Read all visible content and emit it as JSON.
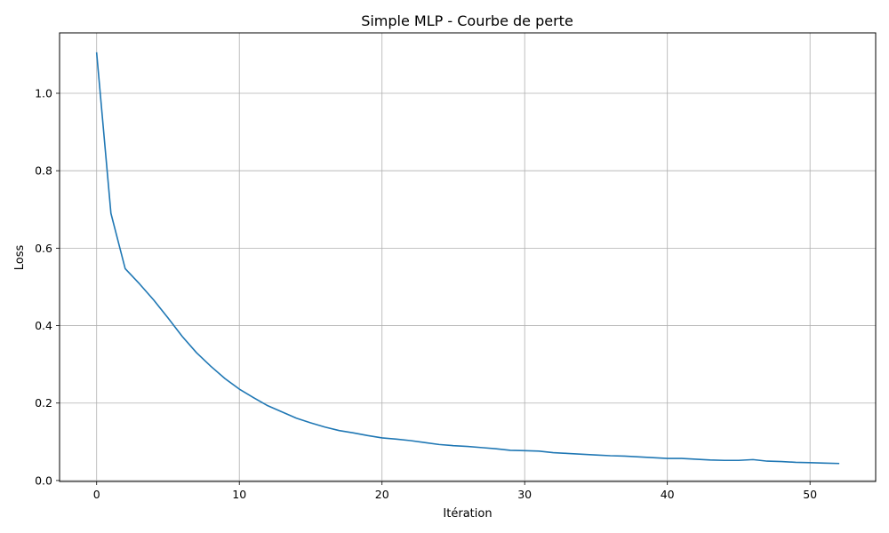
{
  "chart_data": {
    "type": "line",
    "title": "Simple MLP - Courbe de perte",
    "xlabel": "Itération",
    "ylabel": "Loss",
    "xlim": [
      -2.6,
      54.6
    ],
    "ylim": [
      -0.0025,
      1.156
    ],
    "xticks": [
      0,
      10,
      20,
      30,
      40,
      50
    ],
    "yticks": [
      0.0,
      0.2,
      0.4,
      0.6,
      0.8,
      1.0
    ],
    "xtick_labels": [
      "0",
      "10",
      "20",
      "30",
      "40",
      "50"
    ],
    "ytick_labels": [
      "0.0",
      "0.2",
      "0.4",
      "0.6",
      "0.8",
      "1.0"
    ],
    "grid": true,
    "colors": {
      "line": "#1f77b4",
      "grid": "#b0b0b0",
      "axes": "#000000"
    },
    "series": [
      {
        "x": [
          0,
          1,
          2,
          3,
          4,
          5,
          6,
          7,
          8,
          9,
          10,
          11,
          12,
          13,
          14,
          15,
          16,
          17,
          18,
          19,
          20,
          21,
          22,
          23,
          24,
          25,
          26,
          27,
          28,
          29,
          30,
          31,
          32,
          33,
          34,
          35,
          36,
          37,
          38,
          39,
          40,
          41,
          42,
          43,
          44,
          45,
          46,
          47,
          48,
          49,
          50,
          51,
          52
        ],
        "y": [
          1.104,
          0.69,
          0.547,
          0.508,
          0.466,
          0.42,
          0.372,
          0.33,
          0.295,
          0.263,
          0.236,
          0.214,
          0.193,
          0.177,
          0.161,
          0.149,
          0.138,
          0.129,
          0.123,
          0.116,
          0.11,
          0.107,
          0.103,
          0.098,
          0.093,
          0.09,
          0.088,
          0.085,
          0.082,
          0.078,
          0.077,
          0.076,
          0.072,
          0.07,
          0.068,
          0.066,
          0.064,
          0.063,
          0.061,
          0.059,
          0.057,
          0.057,
          0.055,
          0.053,
          0.052,
          0.052,
          0.054,
          0.05,
          0.049,
          0.047,
          0.046,
          0.045,
          0.044
        ]
      }
    ]
  }
}
